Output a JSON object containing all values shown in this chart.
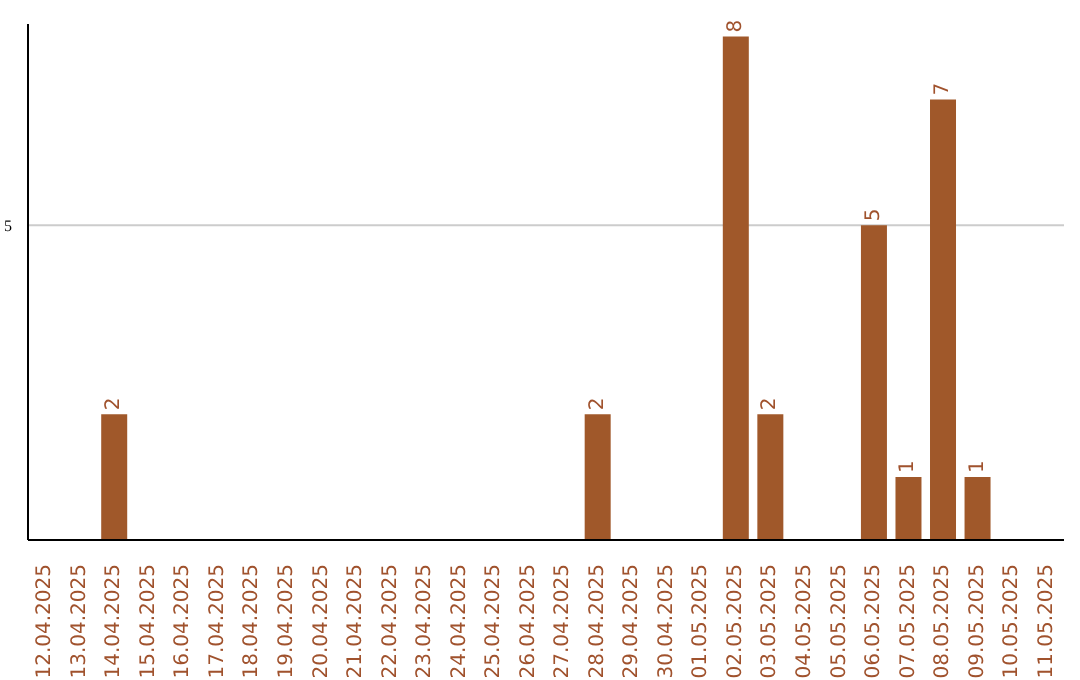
{
  "chart_data": {
    "type": "bar",
    "categories": [
      "12.04.2025",
      "13.04.2025",
      "14.04.2025",
      "15.04.2025",
      "16.04.2025",
      "17.04.2025",
      "18.04.2025",
      "19.04.2025",
      "20.04.2025",
      "21.04.2025",
      "22.04.2025",
      "23.04.2025",
      "24.04.2025",
      "25.04.2025",
      "26.04.2025",
      "27.04.2025",
      "28.04.2025",
      "29.04.2025",
      "30.04.2025",
      "01.05.2025",
      "02.05.2025",
      "03.05.2025",
      "04.05.2025",
      "05.05.2025",
      "06.05.2025",
      "07.05.2025",
      "08.05.2025",
      "09.05.2025",
      "10.05.2025",
      "11.05.2025"
    ],
    "values": [
      0,
      0,
      2,
      0,
      0,
      0,
      0,
      0,
      0,
      0,
      0,
      0,
      0,
      0,
      0,
      0,
      2,
      0,
      0,
      0,
      8,
      2,
      0,
      0,
      5,
      1,
      7,
      1,
      0,
      0
    ],
    "value_labels": [
      null,
      null,
      "2",
      null,
      null,
      null,
      null,
      null,
      null,
      null,
      null,
      null,
      null,
      null,
      null,
      null,
      "2",
      null,
      null,
      null,
      "8",
      "2",
      null,
      null,
      "5",
      "1",
      "7",
      "1",
      null,
      null
    ],
    "color": "#a0582a",
    "ylim": [
      0,
      8.2
    ],
    "yticks": [
      5
    ],
    "grid": "y"
  }
}
